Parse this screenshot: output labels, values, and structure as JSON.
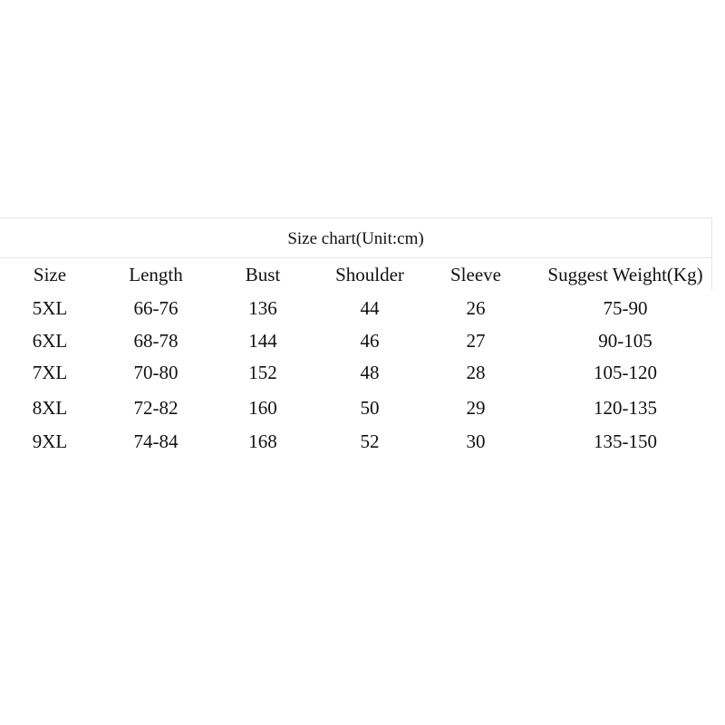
{
  "table": {
    "title": "Size chart(Unit:cm)",
    "headers": [
      "Size",
      "Length",
      "Bust",
      "Shoulder",
      "Sleeve",
      "Suggest Weight(Kg)"
    ],
    "rows": [
      [
        "5XL",
        "66-76",
        "136",
        "44",
        "26",
        "75-90"
      ],
      [
        "6XL",
        "68-78",
        "144",
        "46",
        "27",
        "90-105"
      ],
      [
        "7XL",
        "70-80",
        "152",
        "48",
        "28",
        "105-120"
      ],
      [
        "8XL",
        "72-82",
        "160",
        "50",
        "29",
        "120-135"
      ],
      [
        "9XL",
        "74-84",
        "168",
        "52",
        "30",
        "135-150"
      ]
    ]
  }
}
